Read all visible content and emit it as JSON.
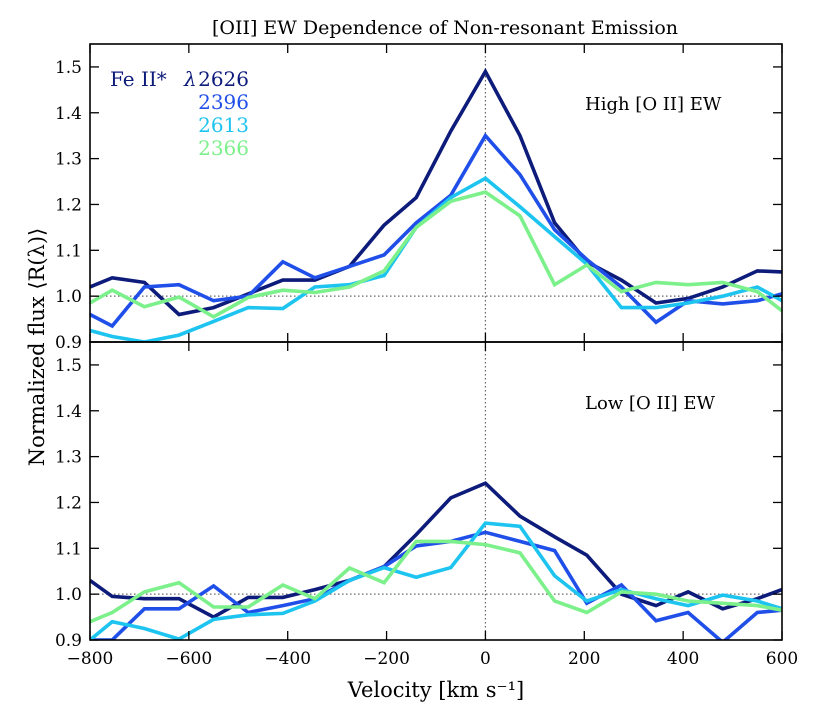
{
  "title": "[OII] EW Dependence of Non-resonant Emission",
  "xlabel": "Velocity [km s⁻¹]",
  "ylabel": "Normalized flux ⟨R(λ)⟩",
  "legend": {
    "prefix": "Fe II*",
    "lambda_symbol": "λ",
    "entries": [
      {
        "label": "2626",
        "color": "#0d1b7a"
      },
      {
        "label": "2396",
        "color": "#1f4fe8"
      },
      {
        "label": "2613",
        "color": "#1ec4f0"
      },
      {
        "label": "2366",
        "color": "#7cf08a"
      }
    ]
  },
  "chart_data": [
    {
      "type": "line",
      "panel": "top",
      "annotation": "High [O II] EW",
      "xlim": [
        -800,
        600
      ],
      "ylim": [
        0.9,
        1.55
      ],
      "xticks": [
        -800,
        -600,
        -400,
        -200,
        0,
        200,
        400,
        600
      ],
      "xtick_labels": [
        "−800",
        "−600",
        "−400",
        "−200",
        "0",
        "200",
        "400",
        "600"
      ],
      "yticks": [
        0.9,
        1.0,
        1.1,
        1.2,
        1.3,
        1.4,
        1.5
      ],
      "ytick_labels": [
        "0.9",
        "1.0",
        "1.1",
        "1.2",
        "1.3",
        "1.4",
        "1.5"
      ],
      "hline": 1.0,
      "vline": 0,
      "x": [
        -800,
        -755,
        -690,
        -620,
        -550,
        -480,
        -410,
        -345,
        -275,
        -205,
        -140,
        -70,
        0,
        70,
        140,
        205,
        275,
        345,
        410,
        480,
        550,
        600
      ],
      "series": [
        {
          "name": "2626",
          "color": "#0d1b7a",
          "values": [
            1.02,
            1.04,
            1.03,
            0.96,
            0.975,
            1.005,
            1.035,
            1.035,
            1.065,
            1.155,
            1.215,
            1.36,
            1.49,
            1.35,
            1.16,
            1.075,
            1.035,
            0.985,
            0.995,
            1.02,
            1.055,
            1.053
          ]
        },
        {
          "name": "2396",
          "color": "#1f4fe8",
          "values": [
            0.96,
            0.935,
            1.02,
            1.025,
            0.99,
            1.0,
            1.075,
            1.04,
            1.065,
            1.09,
            1.16,
            1.22,
            1.35,
            1.265,
            1.145,
            1.08,
            1.02,
            0.943,
            0.99,
            0.983,
            0.99,
            1.005
          ]
        },
        {
          "name": "2613",
          "color": "#1ec4f0",
          "values": [
            0.925,
            0.912,
            0.9,
            0.915,
            0.945,
            0.975,
            0.973,
            1.02,
            1.025,
            1.045,
            1.15,
            1.215,
            1.257,
            1.195,
            1.13,
            1.07,
            0.975,
            0.975,
            0.985,
            1.0,
            1.02,
            0.99
          ]
        },
        {
          "name": "2366",
          "color": "#7cf08a",
          "values": [
            0.985,
            1.013,
            0.977,
            0.998,
            0.955,
            0.997,
            1.013,
            1.008,
            1.02,
            1.055,
            1.15,
            1.207,
            1.227,
            1.175,
            1.025,
            1.068,
            1.01,
            1.03,
            1.025,
            1.03,
            1.01,
            0.968
          ]
        }
      ]
    },
    {
      "type": "line",
      "panel": "bottom",
      "annotation": "Low [O II] EW",
      "xlim": [
        -800,
        600
      ],
      "ylim": [
        0.9,
        1.55
      ],
      "xticks": [
        -800,
        -600,
        -400,
        -200,
        0,
        200,
        400,
        600
      ],
      "xtick_labels": [
        "−800",
        "−600",
        "−400",
        "−200",
        "0",
        "200",
        "400",
        "600"
      ],
      "yticks": [
        0.9,
        1.0,
        1.1,
        1.2,
        1.3,
        1.4,
        1.5
      ],
      "ytick_labels": [
        "0.9",
        "1.0",
        "1.1",
        "1.2",
        "1.3",
        "1.4",
        "1.5"
      ],
      "hline": 1.0,
      "vline": 0,
      "x": [
        -800,
        -755,
        -690,
        -620,
        -550,
        -480,
        -410,
        -345,
        -275,
        -205,
        -140,
        -70,
        0,
        70,
        140,
        205,
        275,
        345,
        410,
        480,
        550,
        600
      ],
      "series": [
        {
          "name": "2626",
          "color": "#0d1b7a",
          "values": [
            1.03,
            0.995,
            0.99,
            0.99,
            0.95,
            0.993,
            0.993,
            1.01,
            1.03,
            1.06,
            1.13,
            1.21,
            1.242,
            1.17,
            1.125,
            1.085,
            1.0,
            0.975,
            1.005,
            0.968,
            0.99,
            1.01
          ]
        },
        {
          "name": "2396",
          "color": "#1f4fe8",
          "values": [
            0.9,
            0.9,
            0.968,
            0.968,
            1.018,
            0.96,
            0.975,
            0.99,
            1.03,
            1.06,
            1.105,
            1.115,
            1.135,
            1.115,
            1.095,
            0.98,
            1.02,
            0.942,
            0.96,
            0.895,
            0.96,
            0.965
          ]
        },
        {
          "name": "2613",
          "color": "#1ec4f0",
          "values": [
            0.9,
            0.94,
            0.925,
            0.902,
            0.945,
            0.955,
            0.958,
            0.985,
            1.03,
            1.058,
            1.037,
            1.058,
            1.155,
            1.148,
            1.04,
            0.985,
            1.01,
            0.99,
            0.975,
            0.998,
            0.985,
            0.968
          ]
        },
        {
          "name": "2366",
          "color": "#7cf08a",
          "values": [
            0.94,
            0.96,
            1.005,
            1.025,
            0.972,
            0.972,
            1.02,
            0.99,
            1.057,
            1.025,
            1.115,
            1.115,
            1.108,
            1.09,
            0.985,
            0.96,
            1.005,
            1.0,
            0.985,
            0.98,
            0.975,
            0.965
          ]
        }
      ]
    }
  ]
}
